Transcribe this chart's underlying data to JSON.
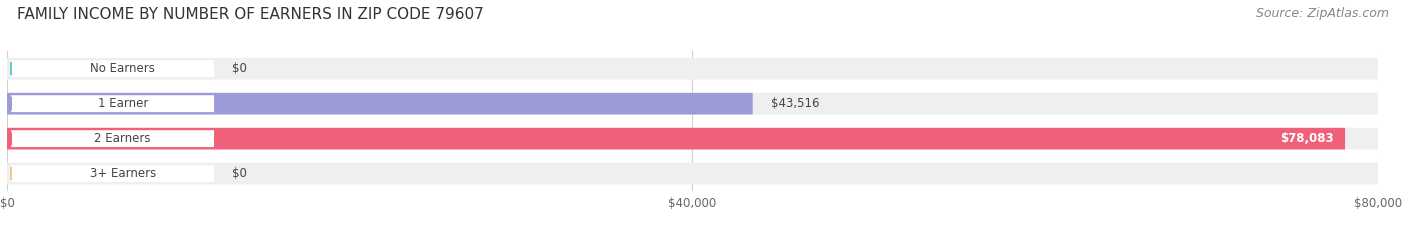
{
  "title": "FAMILY INCOME BY NUMBER OF EARNERS IN ZIP CODE 79607",
  "source": "Source: ZipAtlas.com",
  "categories": [
    "No Earners",
    "1 Earner",
    "2 Earners",
    "3+ Earners"
  ],
  "values": [
    0,
    43516,
    78083,
    0
  ],
  "bar_colors": [
    "#5dcfcc",
    "#9b9bd8",
    "#f0607a",
    "#f5c88a"
  ],
  "bar_bg_color": "#efefef",
  "max_value": 80000,
  "xticks": [
    0,
    40000,
    80000
  ],
  "xticklabels": [
    "$0",
    "$40,000",
    "$80,000"
  ],
  "value_labels": [
    "$0",
    "$43,516",
    "$78,083",
    "$0"
  ],
  "value_label_inside": [
    false,
    false,
    true,
    false
  ],
  "title_fontsize": 11,
  "source_fontsize": 9,
  "bar_height": 0.62,
  "figsize": [
    14.06,
    2.33
  ],
  "dpi": 100,
  "background_color": "#ffffff",
  "label_bg_color": "#ffffff",
  "grid_color": "#d0d0d0"
}
